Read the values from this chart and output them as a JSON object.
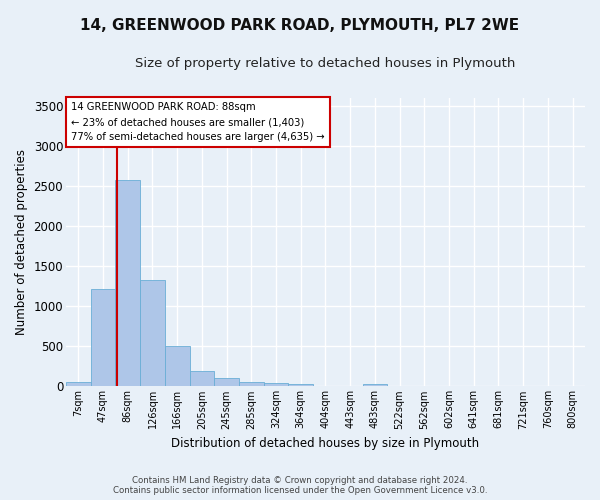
{
  "title1": "14, GREENWOOD PARK ROAD, PLYMOUTH, PL7 2WE",
  "title2": "Size of property relative to detached houses in Plymouth",
  "xlabel": "Distribution of detached houses by size in Plymouth",
  "ylabel": "Number of detached properties",
  "bin_labels": [
    "7sqm",
    "47sqm",
    "86sqm",
    "126sqm",
    "166sqm",
    "205sqm",
    "245sqm",
    "285sqm",
    "324sqm",
    "364sqm",
    "404sqm",
    "443sqm",
    "483sqm",
    "522sqm",
    "562sqm",
    "602sqm",
    "641sqm",
    "681sqm",
    "721sqm",
    "760sqm",
    "800sqm"
  ],
  "bar_heights": [
    60,
    1220,
    2580,
    1330,
    500,
    195,
    105,
    50,
    45,
    35,
    0,
    0,
    35,
    0,
    0,
    0,
    0,
    0,
    0,
    0,
    0
  ],
  "bar_color": "#aec6e8",
  "bar_edge_color": "#6aaed6",
  "annotation_label": "14 GREENWOOD PARK ROAD: 88sqm",
  "annotation_line1": "← 23% of detached houses are smaller (1,403)",
  "annotation_line2": "77% of semi-detached houses are larger (4,635) →",
  "annotation_box_color": "#ffffff",
  "annotation_box_edge": "#cc0000",
  "vline_color": "#cc0000",
  "vline_x": 2.05,
  "ylim": [
    0,
    3600
  ],
  "yticks": [
    0,
    500,
    1000,
    1500,
    2000,
    2500,
    3000,
    3500
  ],
  "footer1": "Contains HM Land Registry data © Crown copyright and database right 2024.",
  "footer2": "Contains public sector information licensed under the Open Government Licence v3.0.",
  "bg_color": "#e8f0f8",
  "plot_bg_color": "#e8f0f8",
  "grid_color": "#ffffff",
  "title1_fontsize": 11,
  "title2_fontsize": 9.5
}
